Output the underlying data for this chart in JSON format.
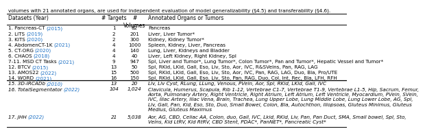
{
  "title_text": "volumes with 21 annotated organs, are used for independent evaluation of model generalizability (§4.5) and transferability (§4.6).",
  "rows": [
    {
      "dataset": "1. Pancreas-CT",
      "year": "2015",
      "targets": "1",
      "volumes": "82",
      "annotations": "Pancreas",
      "italic": false,
      "multiline": false
    },
    {
      "dataset": "2. LiTS",
      "year": "2019",
      "targets": "2",
      "volumes": "201",
      "annotations": "Liver, Liver Tumor*",
      "italic": false,
      "multiline": false
    },
    {
      "dataset": "3. KiTS",
      "year": "2020",
      "targets": "2",
      "volumes": "300",
      "annotations": "Kidney, Kidney Tumor*",
      "italic": false,
      "multiline": false
    },
    {
      "dataset": "4. AbdomenCT-1K",
      "year": "2021",
      "targets": "4",
      "volumes": "1000",
      "annotations": "Spleen, Kidney, Liver, Pancreas",
      "italic": false,
      "multiline": false
    },
    {
      "dataset": "5. CT-ORG",
      "year": "2020",
      "targets": "4",
      "volumes": "140",
      "annotations": "Lung, Liver, Kidneys and Bladder",
      "italic": false,
      "multiline": false
    },
    {
      "dataset": "6. CHAOS",
      "year": "2018",
      "targets": "4",
      "volumes": "40",
      "annotations": "Liver, Left Kidney, Right Kidney, Spl",
      "italic": false,
      "multiline": false
    },
    {
      "dataset": "7-11. MSD CT Tasks",
      "year": "2021",
      "targets": "9",
      "volumes": "947",
      "annotations": "Spl, Liver and Tumor*, Lung Tumor*, Colon Tumor*, Pan and Tumor*, Hepatic Vessel and Tumor*",
      "italic": false,
      "multiline": false
    },
    {
      "dataset": "12. BTCV",
      "year": "2015",
      "targets": "13",
      "volumes": "50",
      "annotations": "Spl, RKid, LKid, Gall, Eso, Liv, Sto, Aor, IVC, R&SVeins, Pan, RAG, LAG",
      "italic": false,
      "multiline": false
    },
    {
      "dataset": "13. AMOS22",
      "year": "2022",
      "targets": "15",
      "volumes": "500",
      "annotations": "Spl, RKid, LKid, Gall, Eso, Liv, Sto, Aor, IVC, Pan, RAG, LAG, Duo, Bla, Pro/UTE",
      "italic": false,
      "multiline": false
    },
    {
      "dataset": "14. WORD",
      "year": "2021",
      "targets": "16",
      "volumes": "150",
      "annotations": "Spl, RKid, LKid, Gall, Eso, Liv, Sto, Pan, RAG, Duo, Col, Int, Rec, Bla, LFH, RFH",
      "italic": false,
      "multiline": false
    },
    {
      "dataset": "15. 3D-IRCADb",
      "year": "2010",
      "targets": "13",
      "volumes": "20",
      "annotations": "Liv, Liv Cyst, RLung, LLung, Venous, PVein, Aor, Spl, RKid, LKid, Gall, IVC",
      "italic": true,
      "multiline": false
    },
    {
      "dataset": "16. TotalSegmentator",
      "year": "2022",
      "targets": "104",
      "volumes": "1,024",
      "annotations": "Clavicula, Humerus, Scapula, Rib 1-12, Vertebrae C1-7, Vertebrae T1-9, Vertebrae L1-5, Hip, Sacrum, Femur,\nAorta, Pulmonary Artery, Right Ventricle, Right Atrium, Left Atrium, Left Ventricle, Myocardium, PVein, SVein,\nIVC, Iliac Artery, Iliac Vena, Brain, Trachea, Lung Upper Lobe, Lung Middle Lobe, Lung Lower Lobe, AG, Spl,\nLiv, Gall, Pan, Kid, Eso, Sto, Duo, Small Bowel, Colon, Bla, Autochthon, Iliopsoas, Gluteus Minimus, Gluteus\nMedius, Gluteus Maximus",
      "italic": true,
      "multiline": true
    },
    {
      "dataset": "17. JHH",
      "year": "2022",
      "targets": "21",
      "volumes": "5,038",
      "annotations": "Aor, AG, CBD, Celiac AA, Colon, duo, Gall, IVC, Lkid, RKid, Liv, Pan, Pan Duct, SMA, Small bowel, Spl, Sto,\nVeins, Kid LtRV, Kid RtRV, CBD Stent, PDAC*, PanNET*, Pancreatic Cyst*",
      "italic": true,
      "multiline": true
    }
  ],
  "blue_color": "#1a6fc4",
  "text_color": "#000000",
  "font_size": 5.2,
  "header_font_size": 5.5,
  "col_dataset": 0.003,
  "col_targets": 0.29,
  "col_volumes": 0.356,
  "col_annot": 0.415
}
